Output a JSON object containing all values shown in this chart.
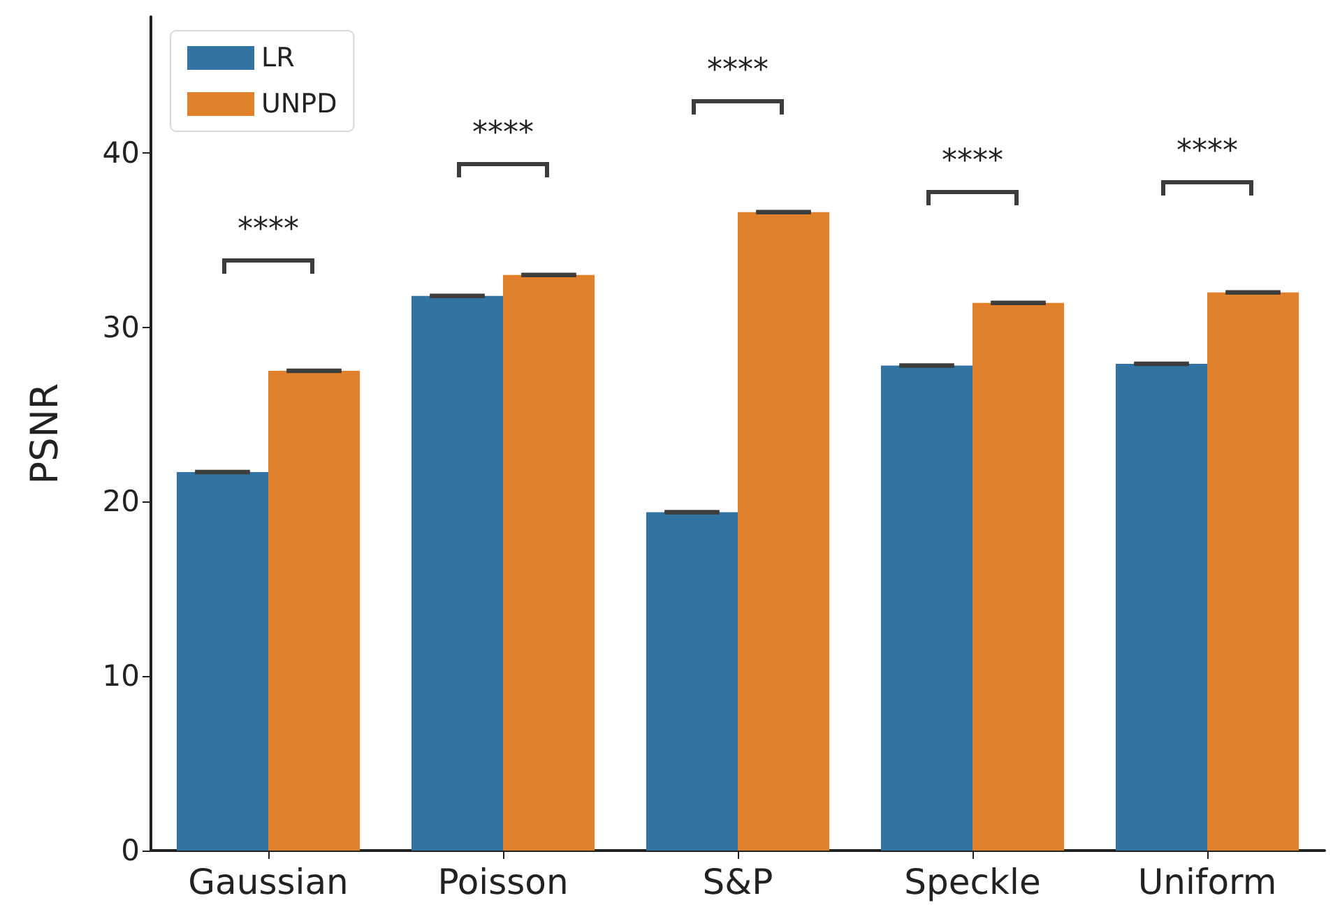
{
  "chart_data": {
    "type": "bar",
    "ylabel": "PSNR",
    "categories": [
      "Gaussian",
      "Poisson",
      "S&P",
      "Speckle",
      "Uniform"
    ],
    "series": [
      {
        "name": "LR",
        "color": "#3274a1",
        "values": [
          21.7,
          31.8,
          19.4,
          27.8,
          27.9
        ],
        "errors": [
          0.05,
          0.05,
          0.05,
          0.05,
          0.05
        ]
      },
      {
        "name": "UNPD",
        "color": "#e1812c",
        "values": [
          27.5,
          33.0,
          36.6,
          31.4,
          32.0
        ],
        "errors": [
          0.05,
          0.05,
          0.05,
          0.05,
          0.05
        ]
      }
    ],
    "ylim": [
      0,
      47.8
    ],
    "yticks": [
      0,
      10,
      20,
      30,
      40
    ],
    "grid": false,
    "legend": "top left",
    "annotations": [
      "****",
      "****",
      "****",
      "****",
      "****"
    ]
  }
}
